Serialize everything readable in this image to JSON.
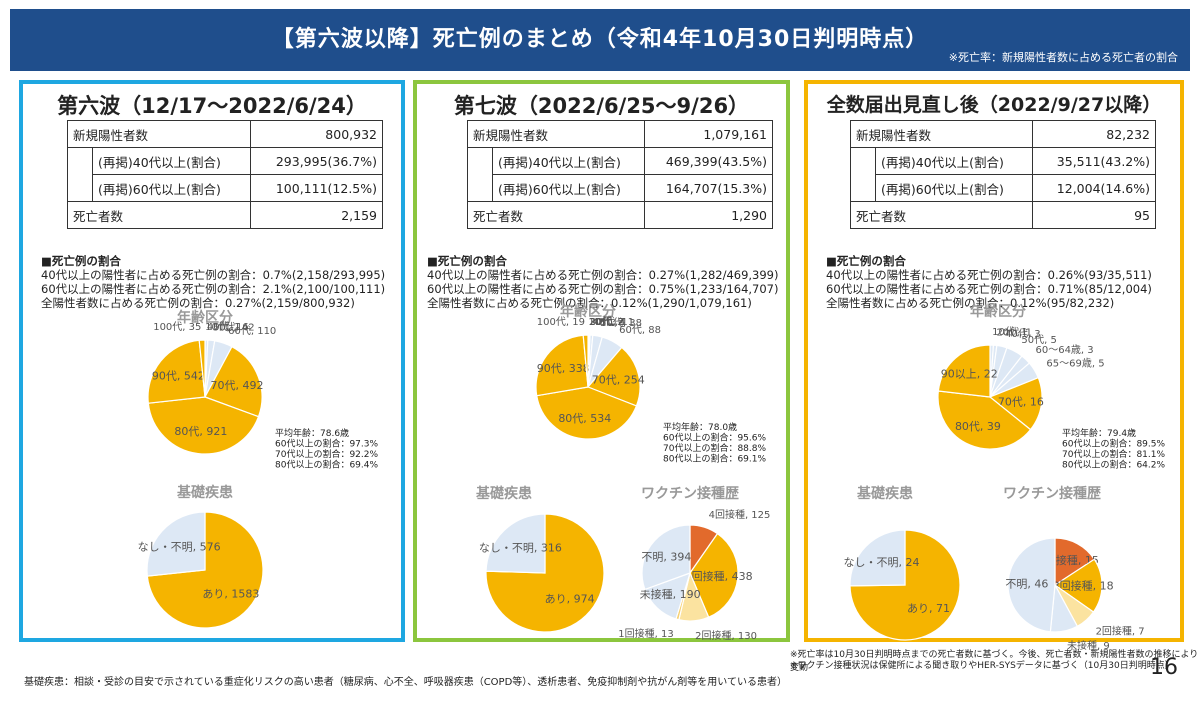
{
  "header": {
    "title": "【第六波以降】死亡例のまとめ（令和4年10月30日判明時点）",
    "note": "※死亡率：新規陽性者数に占める死亡者の割合"
  },
  "labels": {
    "row_new": "新規陽性者数",
    "row_40": "(再掲)40代以上(割合)",
    "row_60": "(再掲)60代以上(割合)",
    "row_death": "死亡者数",
    "ratio_heading": "■死亡例の割合",
    "age_chart_title": "年齢区分",
    "disease_title": "基礎疾患",
    "vaccine_title": "ワクチン接種歴"
  },
  "colors": {
    "wave6": "#1ea7e1",
    "wave7": "#8cc63e",
    "recent": "#f5b400",
    "pie_main": "#f5b400",
    "pie_light": "#dde8f5",
    "pie_pale": "#fbe3a0",
    "pie_red": "#e26a2c"
  },
  "panels": [
    {
      "id": "wave6",
      "title": "第六波（12/17〜2022/6/24）",
      "stats": {
        "new": "800,932",
        "r40": "293,995(36.7%)",
        "r60": "100,111(12.5%)",
        "death": "2,159"
      },
      "ratios": [
        "40代以上の陽性者に占める死亡例の割合：0.7%(2,158/293,995)",
        "60代以上の陽性者に占める死亡例の割合：2.1%(2,100/100,111)",
        "全陽性者数に占める死亡例の割合：0.27%(2,159/800,932)"
      ],
      "avg": [
        "平均年齢：78.6歳",
        "60代以上の割合：97.3%",
        "70代以上の割合：92.2%",
        "80代以上の割合：69.4%"
      ]
    },
    {
      "id": "wave7",
      "title": "第七波（2022/6/25〜9/26）",
      "stats": {
        "new": "1,079,161",
        "r40": "469,399(43.5%)",
        "r60": "164,707(15.3%)",
        "death": "1,290"
      },
      "ratios": [
        "40代以上の陽性者に占める死亡例の割合：0.27%(1,282/469,399)",
        "60代以上の陽性者に占める死亡例の割合：0.75%(1,233/164,707)",
        "全陽性者数に占める死亡例の割合：0.12%(1,290/1,079,161)"
      ],
      "avg": [
        "平均年齢：78.0歳",
        "60代以上の割合：95.6%",
        "70代以上の割合：88.8%",
        "80代以上の割合：69.1%"
      ]
    },
    {
      "id": "recent",
      "title": "全数届出見直し後（2022/9/27以降）",
      "stats": {
        "new": "82,232",
        "r40": "35,511(43.2%)",
        "r60": "12,004(14.6%)",
        "death": "95"
      },
      "ratios": [
        "40代以上の陽性者に占める死亡例の割合：0.26%(93/35,511)",
        "60代以上の陽性者に占める死亡例の割合：0.71%(85/12,004)",
        "全陽性者数に占める死亡例の割合：0.12%(95/82,232)"
      ],
      "avg": [
        "平均年齢：79.4歳",
        "60代以上の割合：89.5%",
        "70代以上の割合：81.1%",
        "80代以上の割合：64.2%"
      ]
    }
  ],
  "chart_data": [
    {
      "type": "pie",
      "panel": "wave6",
      "title": "年齢区分",
      "slices": [
        {
          "label": "10代, 1",
          "value": 1
        },
        {
          "label": "40代, 16",
          "value": 16
        },
        {
          "label": "50代, 42",
          "value": 42
        },
        {
          "label": "60代, 110",
          "value": 110
        },
        {
          "label": "70代, 492",
          "value": 492
        },
        {
          "label": "80代, 921",
          "value": 921
        },
        {
          "label": "90代, 542",
          "value": 542
        },
        {
          "label": "100代, 35",
          "value": 35
        }
      ]
    },
    {
      "type": "pie",
      "panel": "wave6",
      "title": "基礎疾患",
      "slices": [
        {
          "label": "あり, 1583",
          "value": 1583
        },
        {
          "label": "なし・不明, 576",
          "value": 576
        }
      ]
    },
    {
      "type": "pie",
      "panel": "wave7",
      "title": "年齢区分",
      "slices": [
        {
          "label": "10代, 2",
          "value": 2
        },
        {
          "label": "20代, 2",
          "value": 2
        },
        {
          "label": "30代, 4",
          "value": 4
        },
        {
          "label": "40代, 11",
          "value": 11
        },
        {
          "label": "50代, 38",
          "value": 38
        },
        {
          "label": "60代, 88",
          "value": 88
        },
        {
          "label": "70代, 254",
          "value": 254
        },
        {
          "label": "80代, 534",
          "value": 534
        },
        {
          "label": "90代, 338",
          "value": 338
        },
        {
          "label": "100代, 19",
          "value": 19
        }
      ]
    },
    {
      "type": "pie",
      "panel": "wave7",
      "title": "基礎疾患",
      "slices": [
        {
          "label": "あり, 974",
          "value": 974
        },
        {
          "label": "なし・不明, 316",
          "value": 316
        }
      ]
    },
    {
      "type": "pie",
      "panel": "wave7",
      "title": "ワクチン接種歴",
      "slices": [
        {
          "label": "4回接種, 125",
          "value": 125
        },
        {
          "label": "3回接種, 438",
          "value": 438
        },
        {
          "label": "2回接種, 130",
          "value": 130
        },
        {
          "label": "1回接種, 13",
          "value": 13
        },
        {
          "label": "未接種, 190",
          "value": 190
        },
        {
          "label": "不明, 394",
          "value": 394
        }
      ]
    },
    {
      "type": "pie",
      "panel": "recent",
      "title": "年齢区分",
      "slices": [
        {
          "label": "10代, 1",
          "value": 1
        },
        {
          "label": "20代, 1",
          "value": 1
        },
        {
          "label": "40代, 3",
          "value": 3
        },
        {
          "label": "50代, 5",
          "value": 5
        },
        {
          "label": "60〜64歳, 3",
          "value": 3
        },
        {
          "label": "65〜69歳, 5",
          "value": 5
        },
        {
          "label": "70代, 16",
          "value": 16
        },
        {
          "label": "80代, 39",
          "value": 39
        },
        {
          "label": "90以上, 22",
          "value": 22
        }
      ]
    },
    {
      "type": "pie",
      "panel": "recent",
      "title": "基礎疾患",
      "slices": [
        {
          "label": "あり, 71",
          "value": 71
        },
        {
          "label": "なし・不明, 24",
          "value": 24
        }
      ]
    },
    {
      "type": "pie",
      "panel": "recent",
      "title": "ワクチン接種歴",
      "slices": [
        {
          "label": "4回接種, 15",
          "value": 15
        },
        {
          "label": "3回接種, 18",
          "value": 18
        },
        {
          "label": "2回接種, 7",
          "value": 7
        },
        {
          "label": "未接種, 9",
          "value": 9
        },
        {
          "label": "不明, 46",
          "value": 46
        }
      ]
    }
  ],
  "notes": {
    "right1": "※死亡率は10月30日判明時点までの死亡者数に基づく。今後、死亡者数・新規陽性者数の推移により変動",
    "right2": "※ワクチン接種状況は保健所による聞き取りやHER-SYSデータに基づく（10月30日判明時点）",
    "footer": "基礎疾患：相談・受診の目安で示されている重症化リスクの高い患者（糖尿病、心不全、呼吸器疾患（COPD等）、透析患者、免疫抑制剤や抗がん剤等を用いている患者）",
    "page": "16"
  }
}
